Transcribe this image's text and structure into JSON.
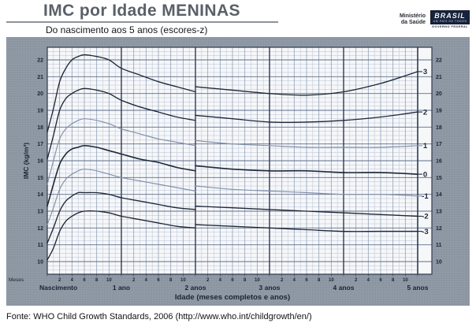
{
  "header": {
    "title": "IMC por Idade MENINAS",
    "subtitle": "Do nascimento aos 5 anos (escores-z)",
    "ministry_line1": "Ministério",
    "ministry_line2": "da Saúde",
    "logo_brand": "BRASIL",
    "logo_tagline": "UM PAÍS DE TODOS",
    "logo_sub": "GOVERNO FEDERAL"
  },
  "footer": {
    "source": "Fonte: WHO Child Growth Standards, 2006 (http://www.who.int/childgrowth/en/)"
  },
  "chart_data": {
    "type": "line",
    "title": "IMC por Idade MENINAS — Do nascimento aos 5 anos (escores-z)",
    "xlabel": "Idade (meses completos e anos)",
    "ylabel": "IMC (kg/m²)",
    "x_unit_label": "Meses",
    "x_year_labels": [
      "Nascimento",
      "1 ano",
      "2 anos",
      "3 anos",
      "4 anos",
      "5 anos"
    ],
    "x_minor_tick_labels_per_year": [
      "2",
      "4",
      "6",
      "8",
      "10"
    ],
    "xlim_months": [
      0,
      60
    ],
    "ylim": [
      9.25,
      22.75
    ],
    "yticks": [
      10,
      11,
      12,
      13,
      14,
      15,
      16,
      17,
      18,
      19,
      20,
      21,
      22
    ],
    "grid": "fine",
    "zscore_labels_right": [
      "3",
      "2",
      "1",
      "0",
      "-1",
      "-2",
      "-3"
    ],
    "months_0_24": [
      0,
      1,
      2,
      3,
      4,
      5,
      6,
      8,
      10,
      12,
      15,
      18,
      21,
      24
    ],
    "months_24_60": [
      24,
      30,
      36,
      42,
      48,
      54,
      60
    ],
    "series": [
      {
        "name": "3",
        "zscore": 3,
        "emphasis": "dark",
        "values_0_24": [
          17.7,
          19.1,
          20.7,
          21.5,
          22.0,
          22.2,
          22.3,
          22.2,
          22.0,
          21.5,
          21.1,
          20.7,
          20.4,
          20.1
        ],
        "values_24_60": [
          20.4,
          20.2,
          20.0,
          19.9,
          20.1,
          20.6,
          21.3
        ]
      },
      {
        "name": "2",
        "zscore": 2,
        "emphasis": "dark",
        "values_0_24": [
          16.1,
          17.5,
          19.0,
          19.7,
          20.0,
          20.2,
          20.3,
          20.2,
          20.0,
          19.6,
          19.2,
          18.9,
          18.6,
          18.4
        ],
        "values_24_60": [
          18.7,
          18.5,
          18.3,
          18.3,
          18.4,
          18.6,
          18.9
        ]
      },
      {
        "name": "1",
        "zscore": 1,
        "emphasis": "light",
        "values_0_24": [
          14.6,
          16.0,
          17.3,
          17.9,
          18.2,
          18.4,
          18.5,
          18.4,
          18.2,
          17.9,
          17.6,
          17.3,
          17.1,
          16.9
        ],
        "values_24_60": [
          17.2,
          17.0,
          16.9,
          16.8,
          16.8,
          16.8,
          16.9
        ]
      },
      {
        "name": "0",
        "zscore": 0,
        "emphasis": "dark",
        "values_0_24": [
          13.3,
          14.6,
          15.8,
          16.4,
          16.7,
          16.8,
          16.9,
          16.8,
          16.6,
          16.4,
          16.1,
          15.9,
          15.6,
          15.4
        ],
        "values_24_60": [
          15.7,
          15.5,
          15.4,
          15.4,
          15.3,
          15.3,
          15.2
        ]
      },
      {
        "name": "-1",
        "zscore": -1,
        "emphasis": "light",
        "values_0_24": [
          12.2,
          13.2,
          14.3,
          14.9,
          15.2,
          15.4,
          15.5,
          15.4,
          15.2,
          15.0,
          14.8,
          14.6,
          14.4,
          14.2
        ],
        "values_24_60": [
          14.5,
          14.3,
          14.2,
          14.1,
          14.0,
          14.0,
          13.9
        ]
      },
      {
        "name": "-2",
        "zscore": -2,
        "emphasis": "dark",
        "values_0_24": [
          11.1,
          12.0,
          13.0,
          13.6,
          13.9,
          14.1,
          14.1,
          14.1,
          14.0,
          13.8,
          13.6,
          13.4,
          13.2,
          13.1
        ],
        "values_24_60": [
          13.3,
          13.2,
          13.1,
          13.0,
          12.9,
          12.8,
          12.7
        ]
      },
      {
        "name": "-3",
        "zscore": -3,
        "emphasis": "dark",
        "values_0_24": [
          10.1,
          10.8,
          11.8,
          12.4,
          12.7,
          12.9,
          13.0,
          13.0,
          12.9,
          12.7,
          12.5,
          12.3,
          12.1,
          12.0
        ],
        "values_24_60": [
          12.2,
          12.1,
          12.0,
          11.9,
          11.8,
          11.8,
          11.8
        ]
      }
    ]
  },
  "colors": {
    "panel_bg": "#8f9aa6",
    "plot_bg": "#f6f7f9",
    "grid_fine": "#b7c1d2",
    "grid_medium": "#93a1b8",
    "grid_major_h": "#5e6e8a",
    "frame": "#2e3950",
    "curve_dark": "#1f2838",
    "curve_light": "#8392ac",
    "title": "#5a6069",
    "text_dark": "#1b2433"
  }
}
